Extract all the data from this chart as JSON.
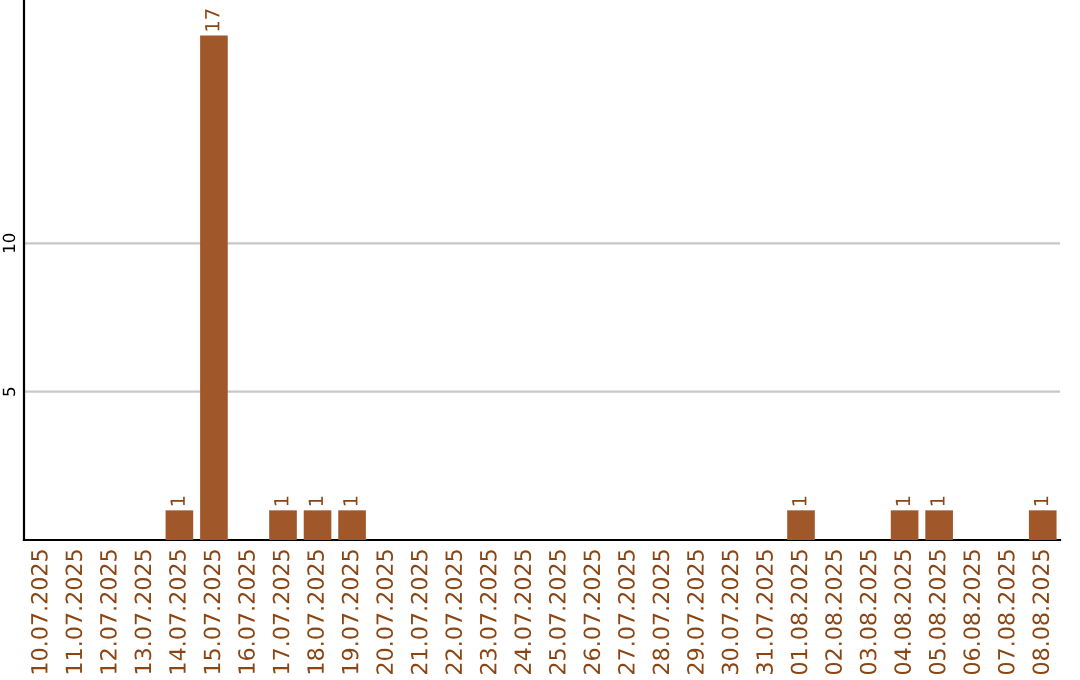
{
  "chart_data": {
    "type": "bar",
    "categories": [
      "10.07.2025",
      "11.07.2025",
      "12.07.2025",
      "13.07.2025",
      "14.07.2025",
      "15.07.2025",
      "16.07.2025",
      "17.07.2025",
      "18.07.2025",
      "19.07.2025",
      "20.07.2025",
      "21.07.2025",
      "22.07.2025",
      "23.07.2025",
      "24.07.2025",
      "25.07.2025",
      "26.07.2025",
      "27.07.2025",
      "28.07.2025",
      "29.07.2025",
      "30.07.2025",
      "31.07.2025",
      "01.08.2025",
      "02.08.2025",
      "03.08.2025",
      "04.08.2025",
      "05.08.2025",
      "06.08.2025",
      "07.08.2025",
      "08.08.2025"
    ],
    "values": [
      0,
      0,
      0,
      0,
      1,
      17,
      0,
      1,
      1,
      1,
      0,
      0,
      0,
      0,
      0,
      0,
      0,
      0,
      0,
      0,
      0,
      0,
      1,
      0,
      0,
      1,
      1,
      0,
      0,
      1
    ],
    "value_labels": [
      null,
      null,
      null,
      null,
      "1",
      "17",
      null,
      "1",
      "1",
      "1",
      null,
      null,
      null,
      null,
      null,
      null,
      null,
      null,
      null,
      null,
      null,
      null,
      "1",
      null,
      null,
      "1",
      "1",
      null,
      null,
      "1"
    ],
    "color": "#a0572a",
    "ylim": [
      0,
      18.2
    ],
    "yticks": [
      5,
      10
    ],
    "grid": "y"
  }
}
